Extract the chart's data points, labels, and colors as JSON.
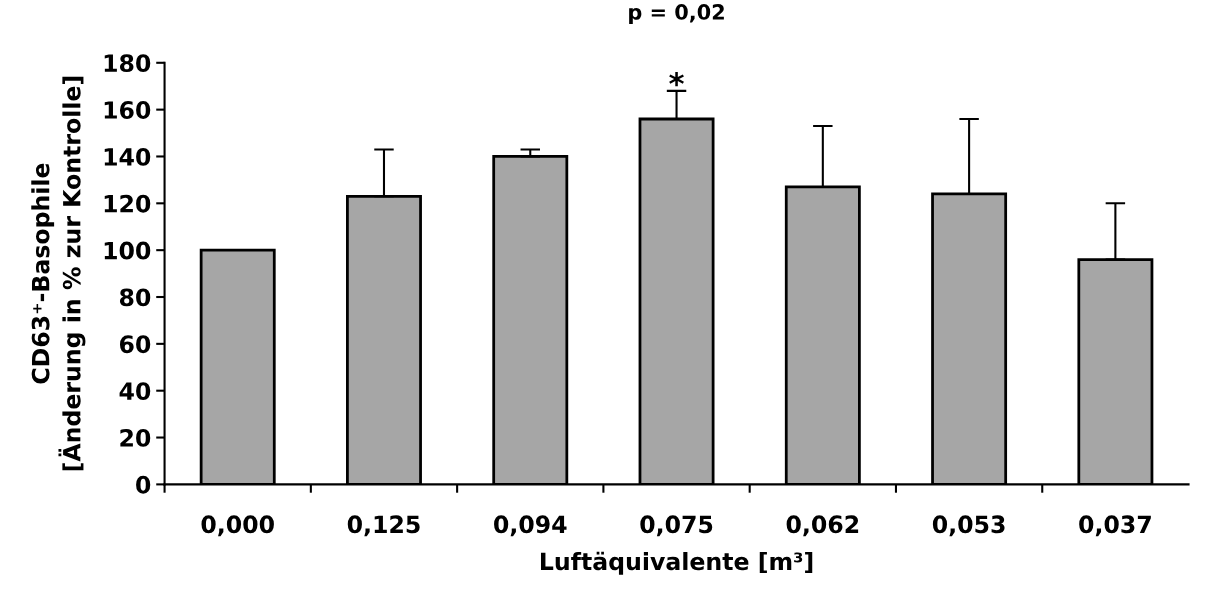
{
  "chart_data": {
    "type": "bar",
    "xlabel": "Luftäquivalente [m³]",
    "ylabel": "CD63⁺-Basophile\n[Änderung in % zur Kontrolle]",
    "categories": [
      "0,000",
      "0,125",
      "0,094",
      "0,075",
      "0,062",
      "0,053",
      "0,037"
    ],
    "values": [
      100,
      123,
      140,
      156,
      127,
      124,
      96
    ],
    "errors": [
      null,
      [
        123,
        143
      ],
      [
        140,
        143
      ],
      [
        156,
        168
      ],
      [
        127,
        153
      ],
      [
        124,
        156
      ],
      [
        96,
        120
      ]
    ],
    "color": "#a6a6a6",
    "ylim": [
      0,
      180
    ],
    "yticks": [
      0,
      20,
      40,
      60,
      80,
      100,
      120,
      140,
      160,
      180
    ],
    "annotations": [
      {
        "text": "*",
        "x": "0,075",
        "y": 170
      },
      "p = 0,02"
    ],
    "grid": false,
    "legend": false
  }
}
